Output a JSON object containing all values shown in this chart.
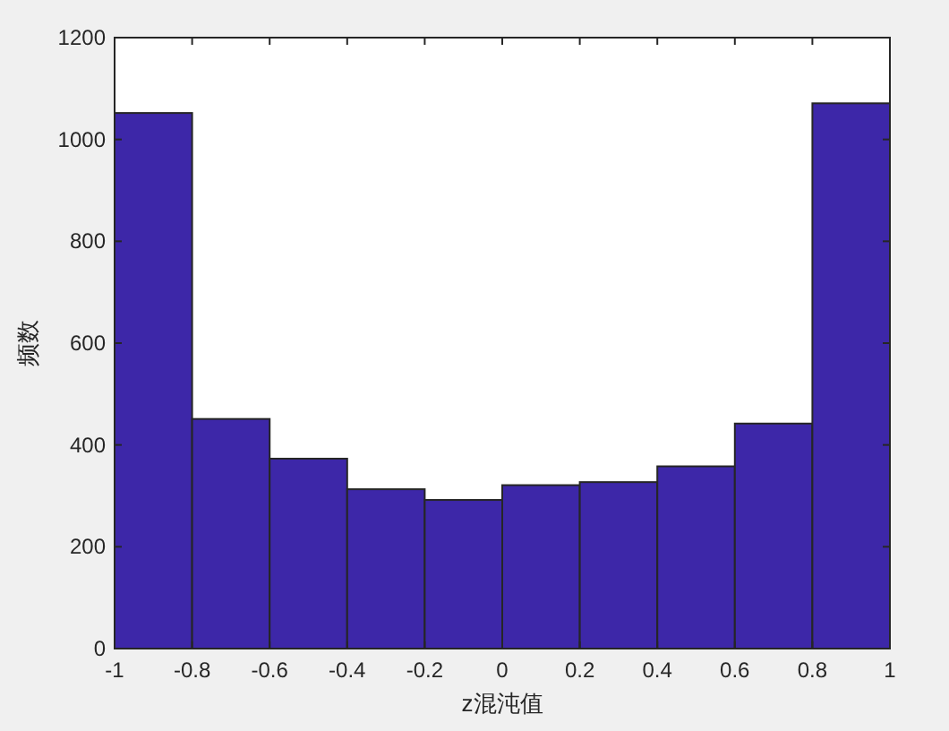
{
  "chart_data": {
    "type": "histogram",
    "xlabel": "z混沌值",
    "ylabel": "频数",
    "bins": [
      -1,
      -0.8,
      -0.6,
      -0.4,
      -0.2,
      0,
      0.2,
      0.4,
      0.6,
      0.8,
      1
    ],
    "values": [
      1052,
      451,
      373,
      313,
      292,
      321,
      327,
      358,
      442,
      1071
    ],
    "color": "#3d27a8",
    "xlim": [
      -1,
      1
    ],
    "xticks": [
      -1,
      -0.8,
      -0.6,
      -0.4,
      -0.2,
      0,
      0.2,
      0.4,
      0.6,
      0.8,
      1
    ],
    "ylim": [
      0,
      1200
    ],
    "yticks": [
      0,
      200,
      400,
      600,
      800,
      1000,
      1200
    ],
    "grid": false
  }
}
